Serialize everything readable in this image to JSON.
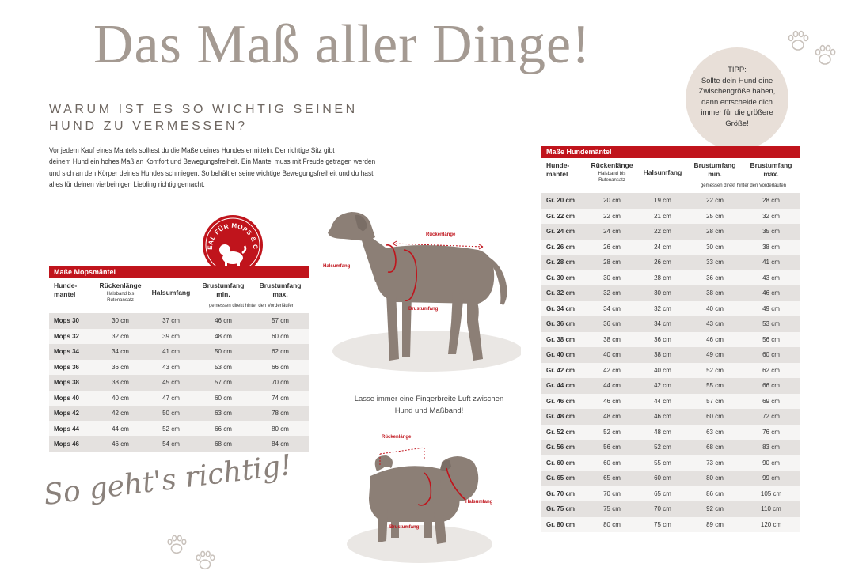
{
  "title": "Das Maß aller Dinge!",
  "subtitle": [
    "WARUM IST ES SO WICHTIG SEINEN",
    "HUND ZU VERMESSEN?"
  ],
  "intro": [
    "Vor jedem Kauf eines Mantels solltest du die Maße deines Hundes ermitteln. Der richtige Sitz gibt",
    "deinem Hund ein hohes Maß an Komfort und Bewegungsfreiheit. Ein Mantel muss mit Freude getragen werden",
    "und sich an den Körper deines Hundes schmiegen. So behält er seine wichtige Bewegungsfreiheit und du hast",
    "alles für deinen vierbeinigen Liebling richtig gemacht."
  ],
  "tipp": [
    "TIPP:",
    "Sollte dein Hund eine",
    "Zwischengröße haben,",
    "dann entscheide dich",
    "immer für die größere",
    "Größe!"
  ],
  "badge": "IDEAL FÜR MOPS & CO.",
  "mops_table": {
    "title": "Maße Mopsmäntel",
    "headers": {
      "col1": [
        "Hunde-",
        "mantel"
      ],
      "col2": "Rückenlänge",
      "col2_note": [
        "Halsband bis",
        "Rutenansatz"
      ],
      "col3": "Halsumfang",
      "col4": [
        "Brustumfang",
        "min."
      ],
      "col5": [
        "Brustumfang",
        "max."
      ],
      "chest_note": "gemessen direkt hinter den Vorderläufen"
    },
    "rows": [
      [
        "Mops 30",
        "30 cm",
        "37 cm",
        "46 cm",
        "57 cm"
      ],
      [
        "Mops 32",
        "32 cm",
        "39 cm",
        "48 cm",
        "60 cm"
      ],
      [
        "Mops 34",
        "34 cm",
        "41 cm",
        "50 cm",
        "62 cm"
      ],
      [
        "Mops 36",
        "36 cm",
        "43 cm",
        "53 cm",
        "66 cm"
      ],
      [
        "Mops 38",
        "38 cm",
        "45 cm",
        "57 cm",
        "70 cm"
      ],
      [
        "Mops 40",
        "40 cm",
        "47 cm",
        "60 cm",
        "74 cm"
      ],
      [
        "Mops 42",
        "42 cm",
        "50 cm",
        "63 cm",
        "78 cm"
      ],
      [
        "Mops 44",
        "44 cm",
        "52 cm",
        "66 cm",
        "80 cm"
      ],
      [
        "Mops 46",
        "46 cm",
        "54 cm",
        "68 cm",
        "84 cm"
      ]
    ]
  },
  "hunde_table": {
    "title": "Maße Hundemäntel",
    "headers": {
      "col1": [
        "Hunde-",
        "mantel"
      ],
      "col2": "Rückenlänge",
      "col2_note": [
        "Halsband bis",
        "Rutenansatz"
      ],
      "col3": "Halsumfang",
      "col4": [
        "Brustumfang",
        "min."
      ],
      "col5": [
        "Brustumfang",
        "max."
      ],
      "chest_note": "gemessen direkt hinter den Vorderläufen"
    },
    "rows": [
      [
        "Gr. 20 cm",
        "20 cm",
        "19 cm",
        "22 cm",
        "28 cm"
      ],
      [
        "Gr. 22 cm",
        "22 cm",
        "21 cm",
        "25 cm",
        "32 cm"
      ],
      [
        "Gr. 24 cm",
        "24 cm",
        "22 cm",
        "28 cm",
        "35 cm"
      ],
      [
        "Gr. 26 cm",
        "26 cm",
        "24 cm",
        "30 cm",
        "38 cm"
      ],
      [
        "Gr. 28 cm",
        "28 cm",
        "26 cm",
        "33 cm",
        "41 cm"
      ],
      [
        "Gr. 30 cm",
        "30 cm",
        "28 cm",
        "36 cm",
        "43 cm"
      ],
      [
        "Gr. 32 cm",
        "32 cm",
        "30 cm",
        "38 cm",
        "46 cm"
      ],
      [
        "Gr. 34 cm",
        "34 cm",
        "32 cm",
        "40 cm",
        "49 cm"
      ],
      [
        "Gr. 36 cm",
        "36 cm",
        "34 cm",
        "43 cm",
        "53 cm"
      ],
      [
        "Gr. 38 cm",
        "38 cm",
        "36 cm",
        "46 cm",
        "56 cm"
      ],
      [
        "Gr. 40 cm",
        "40 cm",
        "38 cm",
        "49 cm",
        "60 cm"
      ],
      [
        "Gr. 42 cm",
        "42 cm",
        "40 cm",
        "52 cm",
        "62 cm"
      ],
      [
        "Gr. 44 cm",
        "44 cm",
        "42 cm",
        "55 cm",
        "66 cm"
      ],
      [
        "Gr. 46 cm",
        "46 cm",
        "44 cm",
        "57 cm",
        "69 cm"
      ],
      [
        "Gr. 48 cm",
        "48 cm",
        "46 cm",
        "60 cm",
        "72 cm"
      ],
      [
        "Gr. 52 cm",
        "52 cm",
        "48 cm",
        "63 cm",
        "76 cm"
      ],
      [
        "Gr. 56 cm",
        "56 cm",
        "52 cm",
        "68 cm",
        "83 cm"
      ],
      [
        "Gr. 60 cm",
        "60 cm",
        "55 cm",
        "73 cm",
        "90 cm"
      ],
      [
        "Gr. 65 cm",
        "65 cm",
        "60 cm",
        "80 cm",
        "99 cm"
      ],
      [
        "Gr. 70 cm",
        "70 cm",
        "65 cm",
        "86 cm",
        "105 cm"
      ],
      [
        "Gr. 75 cm",
        "75 cm",
        "70 cm",
        "92 cm",
        "110 cm"
      ],
      [
        "Gr. 80 cm",
        "80 cm",
        "75 cm",
        "89 cm",
        "120 cm"
      ]
    ]
  },
  "diagram_labels": {
    "ruecken": "Rückenlänge",
    "hals": "Halsumfang",
    "brust": "Brustumfang"
  },
  "fingerbreite": [
    "Lasse immer eine Fingerbreite Luft zwischen",
    "Hund und Maßband!"
  ],
  "script": "So geht's richtig!",
  "colors": {
    "accent": "#c0141c",
    "title": "#a49a92",
    "dog": "#8c7f76",
    "circle": "#e8dfd8"
  }
}
